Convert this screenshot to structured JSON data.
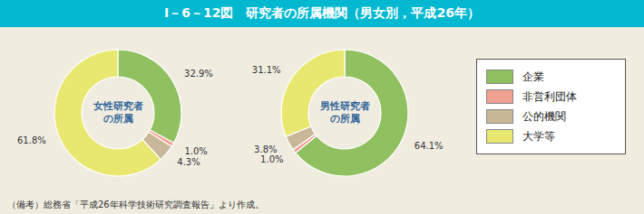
{
  "chart_data": [
    {
      "type": "pie",
      "title": "I－6－12図　研究者の所属機関（男女別，平成26年）",
      "annotations": [
        "女性研究者\nの所属"
      ],
      "categories": [
        "企業",
        "非営利団体",
        "公的機関",
        "大学等"
      ],
      "values": [
        32.9,
        1.0,
        4.3,
        61.8
      ],
      "value_labels": [
        "32.9%",
        "1.0%",
        "4.3%",
        "61.8%"
      ],
      "colors": [
        "#90c060",
        "#f0a090",
        "#c8b898",
        "#e8e870"
      ],
      "data_labels": true
    },
    {
      "type": "pie",
      "annotations": [
        "男性研究者\nの所属",
        "（備考）総務省「平成26年科学技術研究調査報告」より作成。"
      ],
      "categories": [
        "企業",
        "非営利団体",
        "公的機関",
        "大学等"
      ],
      "values": [
        64.1,
        1.0,
        3.8,
        31.1
      ],
      "value_labels": [
        "64.1%",
        "1.0%",
        "3.8%",
        "31.1%"
      ],
      "colors": [
        "#90c060",
        "#f0a090",
        "#c8b898",
        "#e8e870"
      ],
      "data_labels": true,
      "legend": "right"
    }
  ]
}
